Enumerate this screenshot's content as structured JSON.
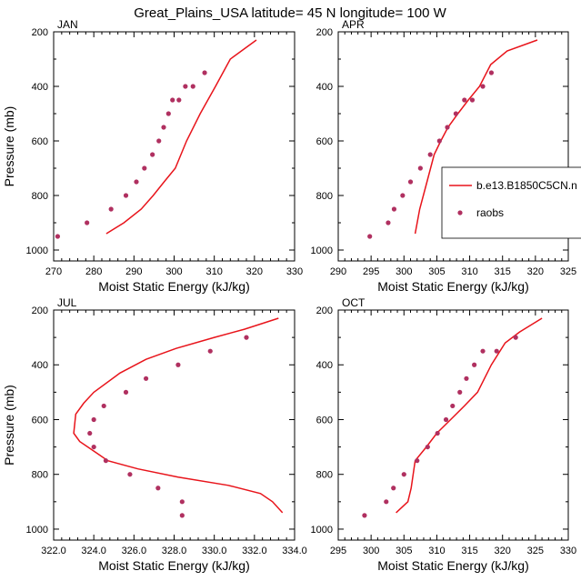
{
  "figure_title": "Great_Plains_USA  latitude= 45 N longitude= 100 W",
  "chart_data": [
    {
      "type": "scatter",
      "panel": "JAN",
      "xlabel": "Moist Static Energy (kJ/kg)",
      "ylabel": "Pressure (mb)",
      "xlim": [
        270,
        330
      ],
      "ylim": [
        1040,
        200
      ],
      "xticks": [
        270,
        280,
        290,
        300,
        310,
        320,
        330
      ],
      "xtick_labels": [
        "270",
        "280",
        "290",
        "300",
        "310",
        "320",
        "330"
      ],
      "yticks": [
        200,
        400,
        600,
        800,
        1000
      ],
      "ytick_labels": [
        "200",
        "400",
        "600",
        "800",
        "1000"
      ],
      "series": [
        {
          "kind": "line",
          "color": "#e8141b",
          "x": [
            283.1,
            287.5,
            291.8,
            294.8,
            297.5,
            300.3,
            303.1,
            306.5,
            310.3,
            314.0,
            320.5
          ],
          "y": [
            940,
            900,
            850,
            800,
            750,
            700,
            600,
            500,
            400,
            300,
            230
          ]
        },
        {
          "kind": "points",
          "color": "#b03060",
          "x": [
            271.0,
            278.3,
            284.3,
            288.0,
            290.6,
            292.6,
            294.6,
            296.2,
            297.4,
            298.6,
            299.6,
            301.2,
            302.8,
            304.7,
            307.6
          ],
          "y": [
            950,
            900,
            850,
            800,
            750,
            700,
            650,
            600,
            550,
            500,
            450,
            450,
            400,
            400,
            350
          ]
        }
      ]
    },
    {
      "type": "scatter",
      "panel": "APR",
      "xlabel": "Moist Static Energy (kJ/kg)",
      "ylabel": "",
      "xlim": [
        290,
        325
      ],
      "ylim": [
        1040,
        200
      ],
      "xticks": [
        290,
        295,
        300,
        305,
        310,
        315,
        320,
        325
      ],
      "xtick_labels": [
        "290",
        "295",
        "300",
        "305",
        "310",
        "315",
        "320",
        "325"
      ],
      "yticks": [
        200,
        400,
        600,
        800,
        1000
      ],
      "ytick_labels": [
        "200",
        "400",
        "600",
        "800",
        "1000"
      ],
      "legend": {
        "position": "right",
        "entries": [
          {
            "label": "b.e13.B1850C5CN.n",
            "kind": "line",
            "color": "#e8141b"
          },
          {
            "label": "raobs",
            "kind": "point",
            "color": "#b03060"
          }
        ]
      },
      "series": [
        {
          "kind": "line",
          "color": "#e8141b",
          "x": [
            301.7,
            302.4,
            303.5,
            304.6,
            305.6,
            306.7,
            308.2,
            309.8,
            311.5,
            313.2,
            315.7,
            320.3
          ],
          "y": [
            940,
            850,
            750,
            650,
            600,
            550,
            500,
            450,
            400,
            320,
            270,
            230
          ]
        },
        {
          "kind": "points",
          "color": "#b03060",
          "x": [
            294.8,
            297.6,
            298.5,
            299.8,
            301.0,
            302.5,
            304.0,
            305.4,
            306.6,
            307.9,
            309.2,
            310.4,
            312.0,
            313.3
          ],
          "y": [
            950,
            900,
            850,
            800,
            750,
            700,
            650,
            600,
            550,
            500,
            450,
            450,
            400,
            350
          ]
        }
      ]
    },
    {
      "type": "scatter",
      "panel": "JUL",
      "xlabel": "Moist Static Energy (kJ/kg)",
      "ylabel": "Pressure (mb)",
      "xlim": [
        322,
        334
      ],
      "ylim": [
        1040,
        200
      ],
      "xticks": [
        322,
        324,
        326,
        328,
        330,
        332,
        334
      ],
      "xtick_labels": [
        "322.0",
        "324.0",
        "326.0",
        "328.0",
        "330.0",
        "332.0",
        "334.0"
      ],
      "yticks": [
        200,
        400,
        600,
        800,
        1000
      ],
      "ytick_labels": [
        "200",
        "400",
        "600",
        "800",
        "1000"
      ],
      "series": [
        {
          "kind": "line",
          "color": "#e8141b",
          "x": [
            333.4,
            332.9,
            332.3,
            330.7,
            328.2,
            326.2,
            324.7,
            324.1,
            323.3,
            323.0,
            323.1,
            323.5,
            324.0,
            325.3,
            326.6,
            328.1,
            330.0,
            331.5,
            333.2
          ],
          "y": [
            940,
            900,
            870,
            840,
            810,
            780,
            750,
            720,
            680,
            650,
            580,
            540,
            500,
            430,
            380,
            340,
            300,
            270,
            230
          ]
        },
        {
          "kind": "points",
          "color": "#b03060",
          "x": [
            328.4,
            328.4,
            327.2,
            325.8,
            324.6,
            324.0,
            323.8,
            324.0,
            324.5,
            325.6,
            326.6,
            328.2,
            329.8,
            331.6
          ],
          "y": [
            950,
            900,
            850,
            800,
            750,
            700,
            650,
            600,
            550,
            500,
            450,
            400,
            350,
            300
          ]
        }
      ]
    },
    {
      "type": "scatter",
      "panel": "OCT",
      "xlabel": "Moist Static Energy (kJ/kg)",
      "ylabel": "",
      "xlim": [
        295,
        330
      ],
      "ylim": [
        1040,
        200
      ],
      "xticks": [
        295,
        300,
        305,
        310,
        315,
        320,
        325,
        330
      ],
      "xtick_labels": [
        "295",
        "300",
        "305",
        "310",
        "315",
        "320",
        "325",
        "330"
      ],
      "yticks": [
        200,
        400,
        600,
        800,
        1000
      ],
      "ytick_labels": [
        "200",
        "400",
        "600",
        "800",
        "1000"
      ],
      "series": [
        {
          "kind": "line",
          "color": "#e8141b",
          "x": [
            303.8,
            305.6,
            306.1,
            306.7,
            308.4,
            310.0,
            312.1,
            314.2,
            316.2,
            318.3,
            320.4,
            322.6,
            326.0
          ],
          "y": [
            940,
            900,
            850,
            750,
            700,
            650,
            600,
            550,
            500,
            400,
            320,
            280,
            230
          ]
        },
        {
          "kind": "points",
          "color": "#b03060",
          "x": [
            299.0,
            302.3,
            303.4,
            305.0,
            307.0,
            308.6,
            310.1,
            311.4,
            312.4,
            313.5,
            314.5,
            315.7,
            317.0,
            319.1,
            322.0
          ],
          "y": [
            950,
            900,
            850,
            800,
            750,
            700,
            650,
            600,
            550,
            500,
            450,
            400,
            350,
            350,
            300
          ]
        }
      ]
    }
  ]
}
